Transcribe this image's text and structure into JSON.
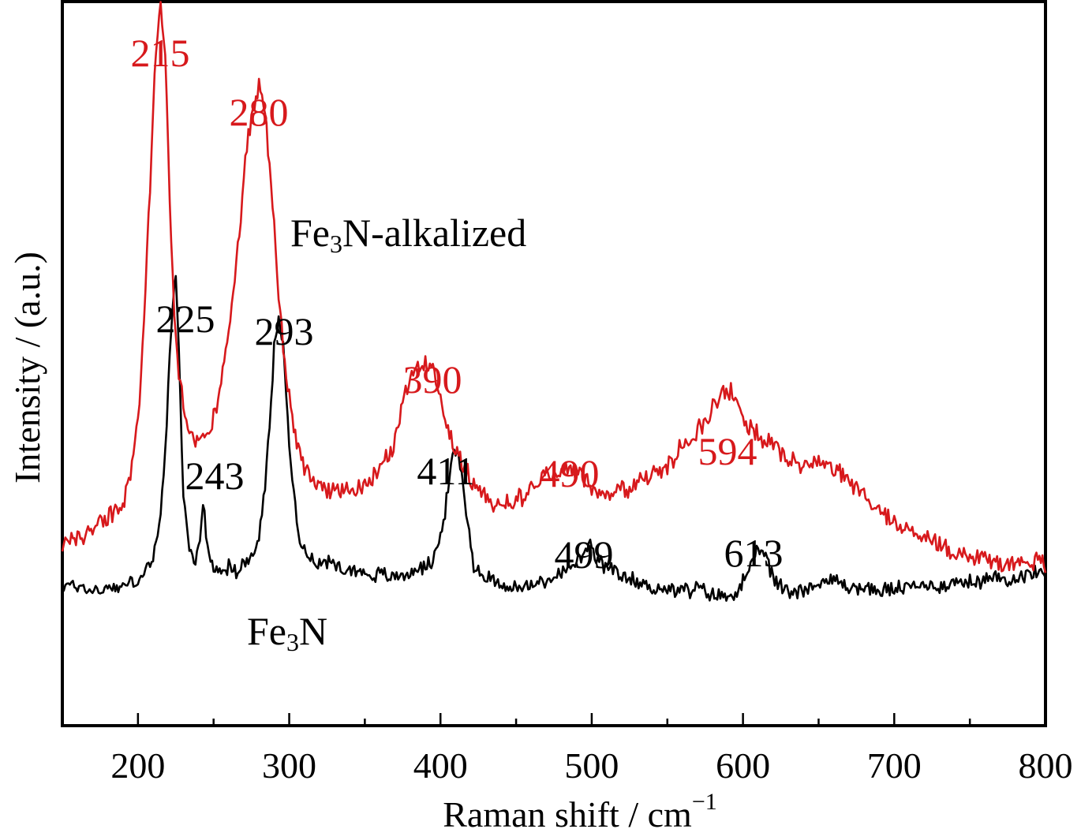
{
  "chart_data": {
    "type": "line",
    "title": "",
    "xlabel": "Raman shift / cm",
    "xlabel_sup": "−1",
    "ylabel": "Intensity / (a.u.)",
    "xlim": [
      150,
      800
    ],
    "ylim": [
      0,
      100
    ],
    "y_ticks_shown": false,
    "grid": false,
    "x_ticks": [
      200,
      300,
      400,
      500,
      600,
      700,
      800
    ],
    "x_tick_labels": [
      "200",
      "300",
      "400",
      "500",
      "600",
      "700",
      "800"
    ],
    "colors": {
      "Fe3N": "#000000",
      "Fe3N-alkalized": "#d7191c"
    },
    "series": [
      {
        "name": "Fe3N",
        "label_main": "Fe",
        "label_sub": "3",
        "label_rest": "N",
        "color": "#000000",
        "peaks": [
          225,
          243,
          293,
          411,
          499,
          613
        ],
        "x": [
          150,
          160,
          170,
          180,
          190,
          200,
          205,
          210,
          215,
          218,
          221,
          223,
          225,
          227,
          230,
          234,
          238,
          241,
          243,
          246,
          250,
          255,
          260,
          265,
          270,
          275,
          280,
          284,
          287,
          290,
          293,
          296,
          300,
          305,
          310,
          315,
          320,
          330,
          340,
          350,
          360,
          370,
          380,
          390,
          395,
          400,
          404,
          408,
          411,
          414,
          418,
          422,
          430,
          440,
          450,
          460,
          470,
          480,
          490,
          495,
          499,
          503,
          510,
          520,
          530,
          540,
          550,
          560,
          570,
          580,
          590,
          595,
          600,
          605,
          609,
          613,
          617,
          622,
          630,
          640,
          650,
          660,
          670,
          680,
          690,
          700,
          720,
          740,
          760,
          780,
          800
        ],
        "y": [
          19.1,
          19.4,
          18.6,
          19.0,
          19.3,
          20.1,
          21.2,
          23.0,
          29.0,
          38.0,
          51.0,
          58.0,
          61.0,
          52.0,
          32.0,
          24.0,
          23.0,
          26.0,
          31.0,
          24.0,
          22.0,
          21.6,
          21.9,
          21.4,
          22.2,
          23.1,
          26.0,
          33.0,
          41.0,
          52.0,
          57.0,
          52.0,
          39.0,
          28.0,
          24.0,
          23.1,
          22.7,
          22.3,
          21.6,
          21.1,
          20.8,
          20.6,
          21.1,
          22.0,
          23.1,
          26.0,
          31.0,
          37.0,
          38.0,
          35.0,
          28.0,
          22.0,
          20.6,
          19.6,
          18.9,
          19.3,
          20.1,
          21.1,
          22.3,
          24.0,
          24.6,
          23.1,
          21.6,
          20.6,
          19.9,
          19.1,
          18.9,
          18.6,
          18.9,
          18.1,
          17.7,
          18.6,
          19.9,
          21.6,
          23.6,
          24.6,
          22.0,
          19.6,
          18.6,
          18.9,
          19.6,
          20.1,
          19.3,
          18.9,
          18.6,
          18.9,
          19.3,
          19.6,
          20.1,
          20.6,
          21.1
        ]
      },
      {
        "name": "Fe3N-alkalized",
        "label_main": "Fe",
        "label_sub": "3",
        "label_rest": "N-alkalized",
        "color": "#d7191c",
        "peaks": [
          215,
          280,
          390,
          490,
          594
        ],
        "x": [
          150,
          160,
          170,
          180,
          190,
          195,
          200,
          203,
          206,
          209,
          212,
          215,
          218,
          221,
          224,
          228,
          232,
          237,
          242,
          247,
          252,
          257,
          262,
          267,
          272,
          276,
          280,
          284,
          288,
          292,
          296,
          300,
          305,
          310,
          320,
          330,
          340,
          350,
          360,
          370,
          375,
          380,
          385,
          390,
          395,
          400,
          405,
          410,
          420,
          430,
          440,
          450,
          460,
          470,
          480,
          490,
          500,
          510,
          520,
          530,
          540,
          550,
          560,
          570,
          580,
          585,
          590,
          595,
          600,
          610,
          620,
          630,
          640,
          650,
          660,
          670,
          680,
          690,
          700,
          710,
          720,
          730,
          740,
          750,
          760,
          770,
          780,
          790,
          800
        ],
        "y": [
          25.0,
          26.0,
          27.0,
          29.0,
          31.0,
          34.0,
          42.0,
          52.0,
          65.0,
          80.0,
          93.0,
          99.0,
          92.0,
          72.0,
          56.0,
          47.0,
          42.0,
          39.0,
          39.5,
          41.0,
          44.0,
          50.0,
          58.0,
          68.0,
          80.0,
          86.0,
          88.0,
          85.0,
          75.0,
          62.0,
          52.0,
          45.0,
          39.0,
          36.0,
          33.5,
          32.5,
          32.0,
          33.5,
          35.0,
          39.0,
          44.0,
          48.0,
          50.0,
          50.5,
          50.0,
          46.0,
          41.0,
          38.0,
          34.0,
          31.5,
          30.5,
          31.0,
          33.0,
          34.5,
          35.0,
          35.5,
          33.0,
          32.0,
          32.5,
          33.5,
          34.5,
          36.0,
          38.5,
          41.0,
          43.5,
          45.5,
          46.5,
          45.5,
          42.5,
          40.0,
          38.5,
          37.0,
          36.0,
          36.5,
          35.5,
          34.0,
          31.5,
          30.0,
          28.0,
          27.0,
          26.0,
          25.0,
          24.0,
          23.5,
          23.0,
          22.5,
          22.5,
          23.0,
          22.0
        ]
      }
    ],
    "annotations": [
      {
        "text": "215",
        "color": "#d7191c",
        "series": "Fe3N-alkalized"
      },
      {
        "text": "280",
        "color": "#d7191c",
        "series": "Fe3N-alkalized"
      },
      {
        "text": "390",
        "color": "#d7191c",
        "series": "Fe3N-alkalized"
      },
      {
        "text": "490",
        "color": "#d7191c",
        "series": "Fe3N-alkalized"
      },
      {
        "text": "594",
        "color": "#d7191c",
        "series": "Fe3N-alkalized"
      },
      {
        "text": "225",
        "color": "#000000",
        "series": "Fe3N"
      },
      {
        "text": "243",
        "color": "#000000",
        "series": "Fe3N"
      },
      {
        "text": "293",
        "color": "#000000",
        "series": "Fe3N"
      },
      {
        "text": "411",
        "color": "#000000",
        "series": "Fe3N"
      },
      {
        "text": "499",
        "color": "#000000",
        "series": "Fe3N"
      },
      {
        "text": "613",
        "color": "#000000",
        "series": "Fe3N"
      }
    ]
  }
}
